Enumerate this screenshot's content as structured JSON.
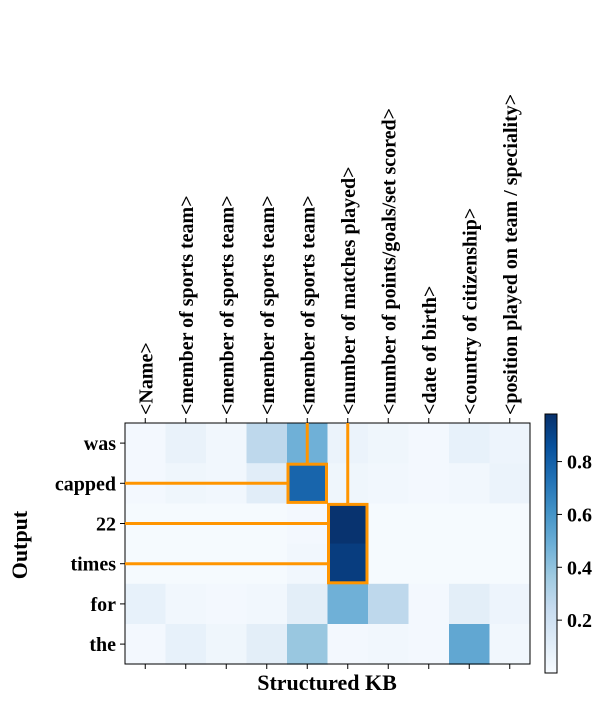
{
  "chart_data": {
    "type": "heatmap",
    "title": "",
    "xlabel": "Structured KB",
    "ylabel": "Output",
    "x_categories": [
      "<Name>",
      "<member of sports team>",
      "<member of sports team>",
      "<member of sports team>",
      "<member of sports team>",
      "<number of matches played>",
      "<number of points/goals/set scored>",
      "<date of birth>",
      "<country of citizenship>",
      "<position played on team / speciality>"
    ],
    "y_categories": [
      "was",
      "capped",
      "22",
      "times",
      "for",
      "the"
    ],
    "values": [
      [
        0.02,
        0.07,
        0.03,
        0.27,
        0.48,
        0.06,
        0.04,
        0.02,
        0.08,
        0.05
      ],
      [
        0.02,
        0.04,
        0.03,
        0.11,
        0.78,
        0.04,
        0.03,
        0.02,
        0.03,
        0.06
      ],
      [
        0.01,
        0.01,
        0.01,
        0.01,
        0.02,
        0.97,
        0.01,
        0.01,
        0.01,
        0.01
      ],
      [
        0.01,
        0.01,
        0.01,
        0.01,
        0.03,
        0.93,
        0.01,
        0.01,
        0.01,
        0.01
      ],
      [
        0.08,
        0.03,
        0.02,
        0.03,
        0.1,
        0.48,
        0.27,
        0.02,
        0.1,
        0.05
      ],
      [
        0.02,
        0.08,
        0.04,
        0.1,
        0.38,
        0.02,
        0.03,
        0.02,
        0.52,
        0.03
      ]
    ],
    "highlights": [
      {
        "row": "capped",
        "col": 4
      },
      {
        "rows": [
          "22",
          "times"
        ],
        "col": 5
      }
    ],
    "colorbar": {
      "colormap": "Blues",
      "range": [
        0.0,
        0.98
      ],
      "ticks": [
        0.2,
        0.4,
        0.6,
        0.8
      ],
      "tick_labels": [
        "0.2",
        "0.4",
        "0.6",
        "0.8"
      ]
    },
    "highlight_color": "#ff9500"
  }
}
